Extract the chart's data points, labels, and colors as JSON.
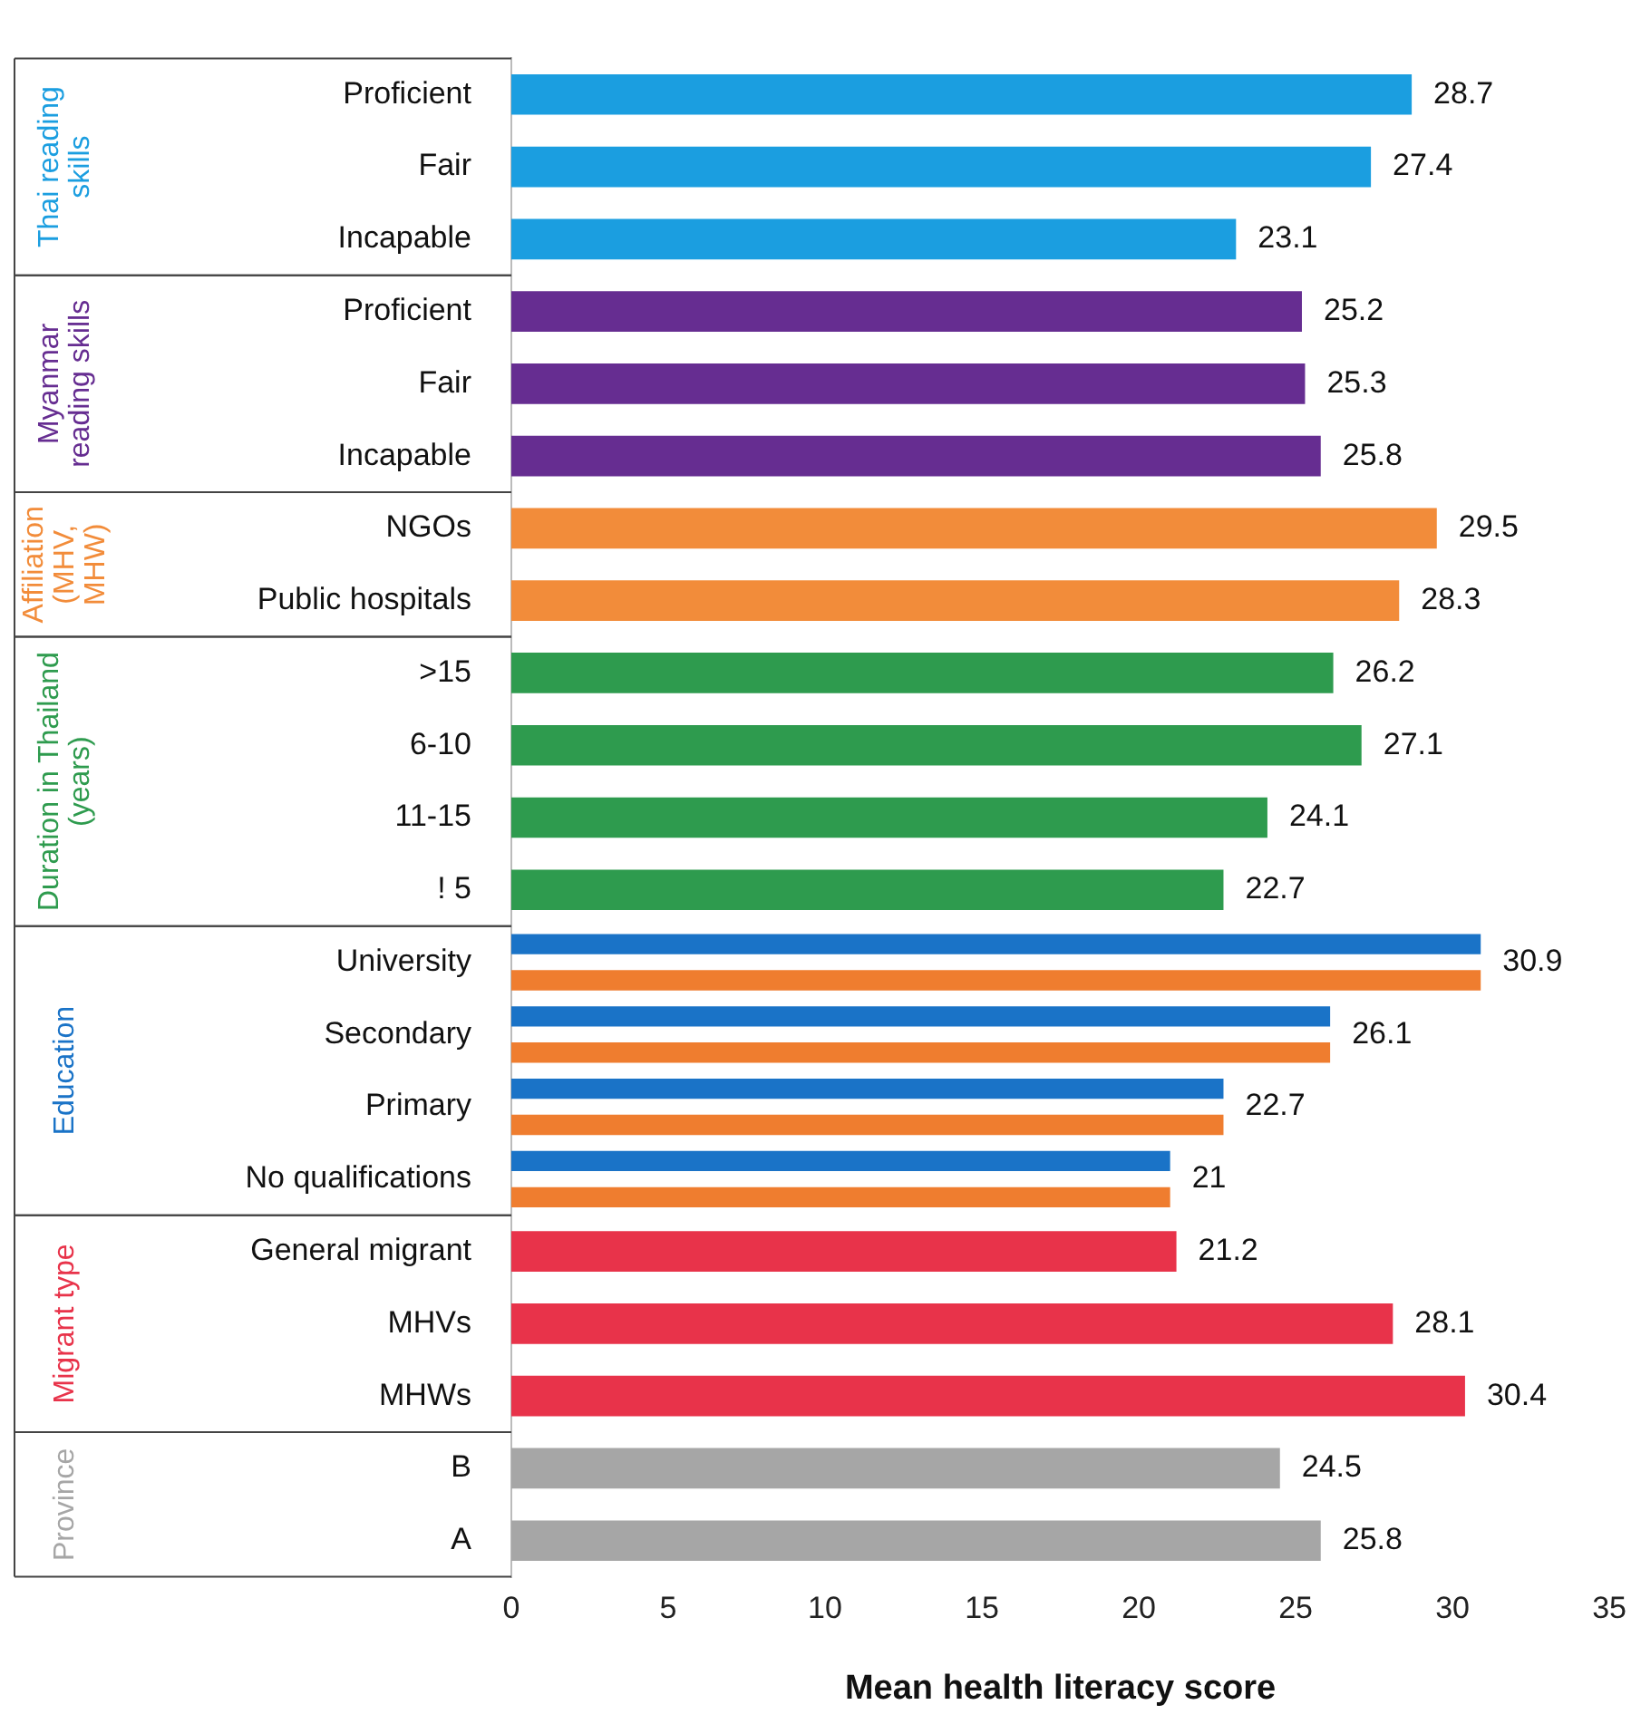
{
  "chart_data": {
    "type": "bar",
    "orientation": "horizontal",
    "xlabel": "Mean health literacy score",
    "categories": [
      "Proficient",
      "Fair",
      "Incapable",
      "Proficient",
      "Fair",
      "Incapable",
      "NGOs",
      "Public hospitals",
      ">15",
      "6-10",
      "11-15",
      "! 5",
      "University",
      "Secondary",
      "Primary",
      "No qualifications",
      "General migrant",
      "MHVs",
      "MHWs",
      "B",
      "A"
    ],
    "series": [
      {
        "name": "Thai reading skills",
        "color": "#1b9ee0",
        "values": [
          28.7,
          27.4,
          23.1,
          null,
          null,
          null,
          null,
          null,
          null,
          null,
          null,
          null,
          null,
          null,
          null,
          null,
          null,
          null,
          null,
          null,
          null
        ]
      },
      {
        "name": "Myanmar reading skills",
        "color": "#662d91",
        "values": [
          null,
          null,
          null,
          25.2,
          25.3,
          25.8,
          null,
          null,
          null,
          null,
          null,
          null,
          null,
          null,
          null,
          null,
          null,
          null,
          null,
          null,
          null
        ]
      },
      {
        "name": "Affiliation (MHV, MHW)",
        "color": "#f28c3a",
        "values": [
          null,
          null,
          null,
          null,
          null,
          null,
          29.5,
          28.3,
          null,
          null,
          null,
          null,
          null,
          null,
          null,
          null,
          null,
          null,
          null,
          null,
          null
        ]
      },
      {
        "name": "Duration in Thailand (years)",
        "color": "#2e9b4e",
        "values": [
          null,
          null,
          null,
          null,
          null,
          null,
          null,
          null,
          26.2,
          27.1,
          24.1,
          22.7,
          null,
          null,
          null,
          null,
          null,
          null,
          null,
          null,
          null
        ]
      },
      {
        "name": "Education",
        "color": "#1a73c7",
        "values": [
          null,
          null,
          null,
          null,
          null,
          null,
          null,
          null,
          null,
          null,
          null,
          null,
          30.9,
          26.1,
          22.7,
          21,
          null,
          null,
          null,
          null,
          null
        ]
      },
      {
        "color": "#ef7d2f",
        "values": [
          null,
          null,
          null,
          null,
          null,
          null,
          null,
          null,
          null,
          null,
          null,
          null,
          30.9,
          26.1,
          22.7,
          21,
          null,
          null,
          null,
          null,
          null
        ],
        "value_labels": [
          null,
          null,
          null,
          null,
          null,
          null,
          null,
          null,
          null,
          null,
          null,
          null,
          null,
          null,
          null,
          null,
          null,
          null,
          null,
          null,
          null
        ]
      },
      {
        "name": "Migrant type",
        "color": "#e8334a",
        "values": [
          null,
          null,
          null,
          null,
          null,
          null,
          null,
          null,
          null,
          null,
          null,
          null,
          null,
          null,
          null,
          null,
          21.2,
          28.1,
          30.4,
          null,
          null
        ]
      },
      {
        "name": "Province",
        "color": "#a6a6a6",
        "values": [
          null,
          null,
          null,
          null,
          null,
          null,
          null,
          null,
          null,
          null,
          null,
          null,
          null,
          null,
          null,
          null,
          null,
          null,
          null,
          24.5,
          25.8
        ]
      }
    ],
    "xlim": [
      0,
      35
    ],
    "xticks": [
      0,
      5,
      10,
      15,
      20,
      25,
      30,
      35
    ],
    "grid": false,
    "legend": false,
    "data_labels": true
  }
}
